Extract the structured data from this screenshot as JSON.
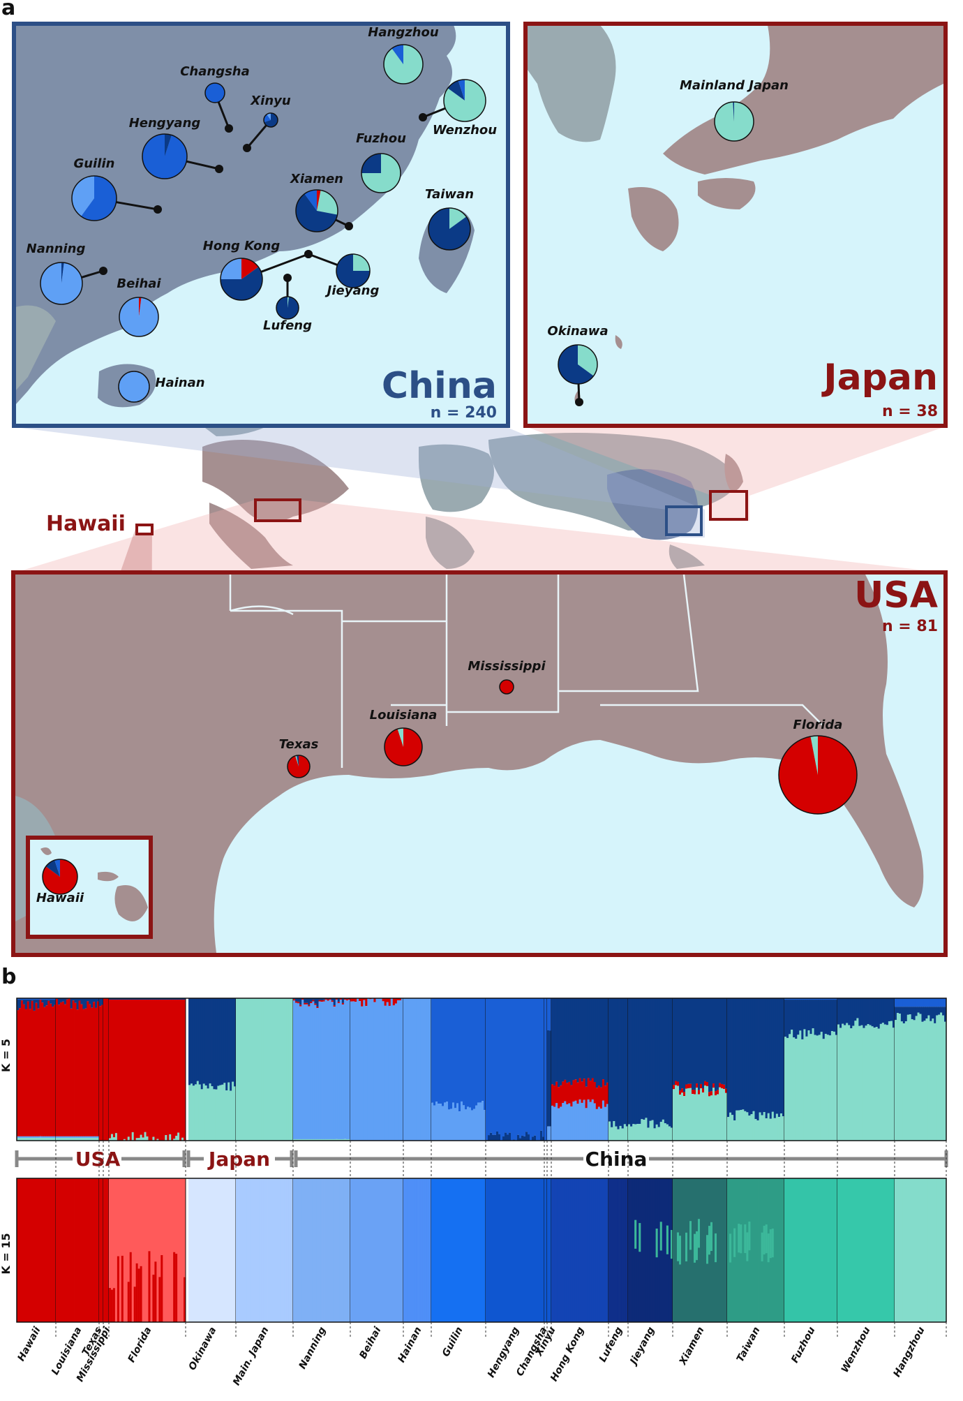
{
  "panels": {
    "a": "a",
    "b": "b"
  },
  "colors": {
    "usa_red": "#d40000",
    "japan_mint": "#86dccb",
    "dark_navy": "#0b3a86",
    "mid_blue": "#1a5fd6",
    "light_blue": "#5fa0f5",
    "china_box": "#2c4f86",
    "japan_box": "#8b1414",
    "usa_box": "#8b1414",
    "sea": "#d6f4fb",
    "china_land": "#7f8fa8",
    "japan_land": "#a58f90",
    "usa_land": "#a58f90"
  },
  "china_map": {
    "title": "China",
    "n_label": "n = 240",
    "sites": [
      {
        "name": "Hangzhou",
        "fractions": [
          0,
          0.9,
          0,
          0.1,
          0
        ]
      },
      {
        "name": "Changsha",
        "fractions": [
          0,
          0,
          0,
          1.0,
          0
        ]
      },
      {
        "name": "Xinyu",
        "fractions": [
          0,
          0,
          0.7,
          0.2,
          0.1
        ]
      },
      {
        "name": "Wenzhou",
        "fractions": [
          0,
          0.85,
          0.1,
          0.05,
          0
        ]
      },
      {
        "name": "Hengyang",
        "fractions": [
          0,
          0,
          0.05,
          0.95,
          0
        ]
      },
      {
        "name": "Fuzhou",
        "fractions": [
          0,
          0.75,
          0.25,
          0,
          0
        ]
      },
      {
        "name": "Guilin",
        "fractions": [
          0,
          0,
          0,
          0.6,
          0.4
        ]
      },
      {
        "name": "Xiamen",
        "fractions": [
          0.03,
          0.25,
          0.62,
          0.1,
          0
        ]
      },
      {
        "name": "Taiwan",
        "fractions": [
          0,
          0.15,
          0.85,
          0,
          0
        ]
      },
      {
        "name": "Nanning",
        "fractions": [
          0,
          0,
          0.02,
          0,
          0.98
        ]
      },
      {
        "name": "Hong Kong",
        "fractions": [
          0.15,
          0,
          0.6,
          0,
          0.25
        ]
      },
      {
        "name": "Jieyang",
        "fractions": [
          0,
          0.25,
          0.75,
          0,
          0
        ]
      },
      {
        "name": "Beihai",
        "fractions": [
          0.02,
          0,
          0,
          0,
          0.98
        ]
      },
      {
        "name": "Lufeng",
        "fractions": [
          0,
          0.02,
          0.98,
          0,
          0
        ]
      },
      {
        "name": "Hainan",
        "fractions": [
          0,
          0,
          0,
          0,
          1.0
        ]
      }
    ]
  },
  "japan_map": {
    "title": "Japan",
    "n_label": "n = 38",
    "sites": [
      {
        "name": "Mainland Japan",
        "fractions": [
          0,
          0.99,
          0.01,
          0,
          0
        ]
      },
      {
        "name": "Okinawa",
        "fractions": [
          0,
          0.35,
          0.65,
          0,
          0
        ]
      }
    ]
  },
  "usa_map": {
    "title": "USA",
    "n_label": "n = 81",
    "hawaii_label": "Hawaii",
    "sites": [
      {
        "name": "Mississippi",
        "fractions": [
          1.0,
          0,
          0,
          0,
          0
        ]
      },
      {
        "name": "Louisiana",
        "fractions": [
          0.95,
          0.05,
          0,
          0,
          0
        ]
      },
      {
        "name": "Texas",
        "fractions": [
          0.95,
          0.02,
          0.03,
          0,
          0
        ]
      },
      {
        "name": "Florida",
        "fractions": [
          0.97,
          0.03,
          0,
          0,
          0
        ]
      },
      {
        "name": "Hawaii",
        "fractions": [
          0.85,
          0,
          0.1,
          0.05,
          0
        ]
      }
    ]
  },
  "structure": {
    "k5_label": "K = 5",
    "k15_label": "K = 15",
    "groups": [
      {
        "name": "USA"
      },
      {
        "name": "Japan"
      },
      {
        "name": "China"
      }
    ],
    "populations": [
      {
        "label": "Hawaii"
      },
      {
        "label": "Louisiana"
      },
      {
        "label": "Texas"
      },
      {
        "label": "Mississippi"
      },
      {
        "label": "Florida"
      },
      {
        "label": "Okinawa"
      },
      {
        "label": "Main. Japan"
      },
      {
        "label": "Nanning"
      },
      {
        "label": "Beihai"
      },
      {
        "label": "Hainan"
      },
      {
        "label": "Guilin"
      },
      {
        "label": "Hengyang"
      },
      {
        "label": "Changsha"
      },
      {
        "label": "Xinyu"
      },
      {
        "label": "Hong Kong"
      },
      {
        "label": "Lufeng"
      },
      {
        "label": "Jieyang"
      },
      {
        "label": "Xiamen"
      },
      {
        "label": "Taiwan"
      },
      {
        "label": "Fuzhou"
      },
      {
        "label": "Wenzhou"
      },
      {
        "label": "Hangzhou"
      }
    ]
  }
}
